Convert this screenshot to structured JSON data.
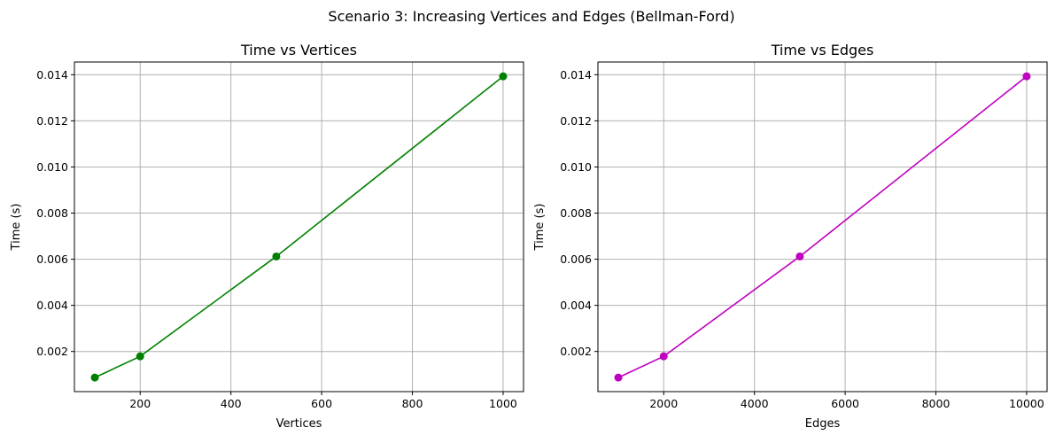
{
  "figure": {
    "suptitle": "Scenario 3: Increasing Vertices and Edges (Bellman-Ford)"
  },
  "chart_data": [
    {
      "type": "line",
      "title": "Time vs Vertices",
      "xlabel": "Vertices",
      "ylabel": "Time (s)",
      "x": [
        100,
        200,
        500,
        1000
      ],
      "series": [
        {
          "values": [
            0.00087,
            0.00179,
            0.00612,
            0.01393
          ],
          "color": "#008000",
          "marker": "circle"
        }
      ],
      "xlim": [
        55,
        1045
      ],
      "ylim": [
        0.00026,
        0.01455
      ],
      "xticks": [
        200,
        400,
        600,
        800,
        1000
      ],
      "xtick_labels": [
        "200",
        "400",
        "600",
        "800",
        "1000"
      ],
      "yticks": [
        0.002,
        0.004,
        0.006,
        0.008,
        0.01,
        0.012,
        0.014
      ],
      "ytick_labels": [
        "0.002",
        "0.004",
        "0.006",
        "0.008",
        "0.010",
        "0.012",
        "0.014"
      ],
      "grid": true,
      "legend": "none"
    },
    {
      "type": "line",
      "title": "Time vs Edges",
      "xlabel": "Edges",
      "ylabel": "Time (s)",
      "x": [
        1000,
        2000,
        5000,
        10000
      ],
      "series": [
        {
          "values": [
            0.00087,
            0.00179,
            0.00612,
            0.01393
          ],
          "color": "#bf00bf",
          "marker": "circle"
        }
      ],
      "xlim": [
        550,
        10450
      ],
      "ylim": [
        0.00026,
        0.01455
      ],
      "xticks": [
        2000,
        4000,
        6000,
        8000,
        10000
      ],
      "xtick_labels": [
        "2000",
        "4000",
        "6000",
        "8000",
        "10000"
      ],
      "yticks": [
        0.002,
        0.004,
        0.006,
        0.008,
        0.01,
        0.012,
        0.014
      ],
      "ytick_labels": [
        "0.002",
        "0.004",
        "0.006",
        "0.008",
        "0.010",
        "0.012",
        "0.014"
      ],
      "grid": true,
      "legend": "none"
    }
  ]
}
